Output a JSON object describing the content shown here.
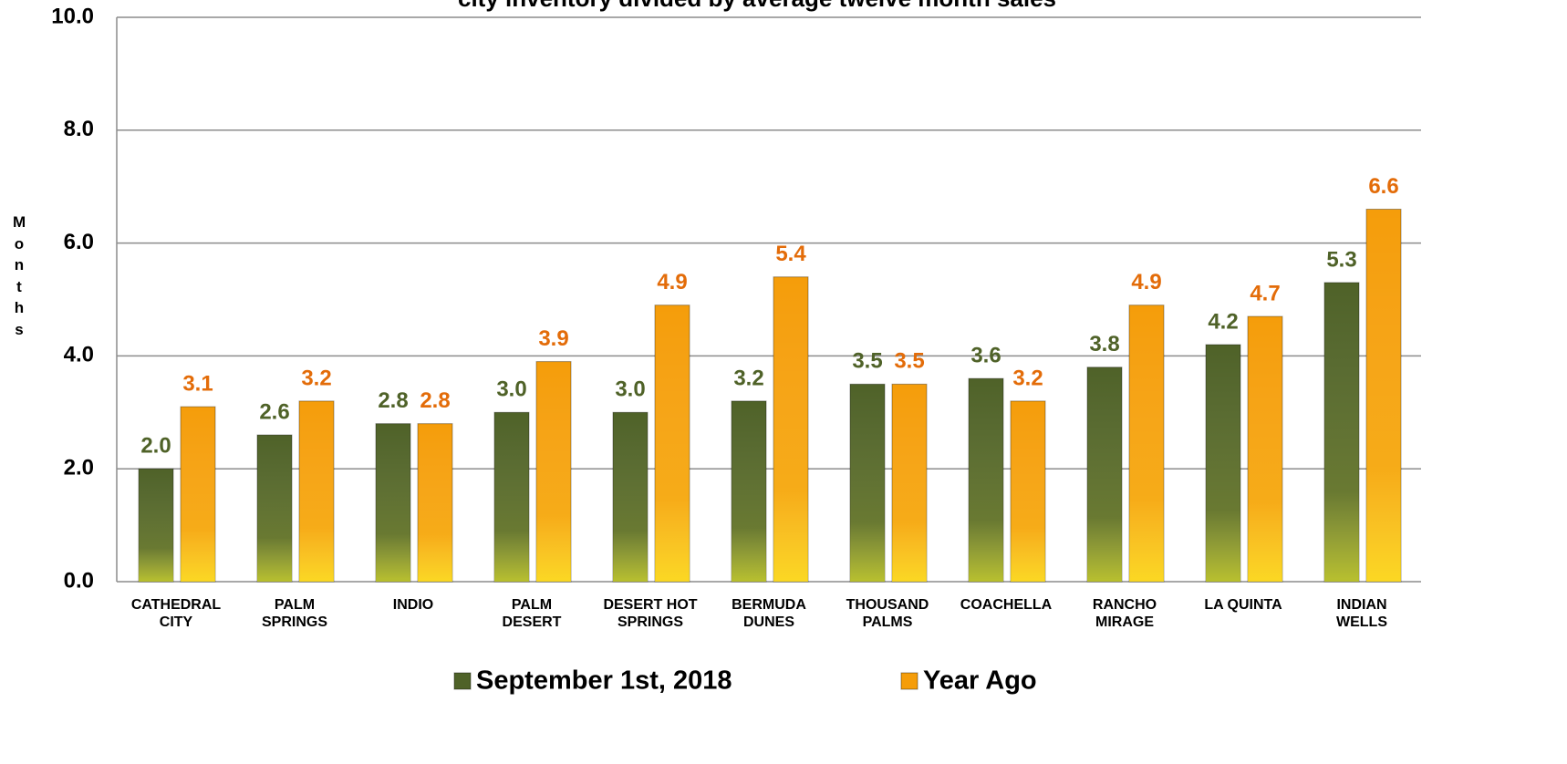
{
  "chart_data": {
    "type": "bar",
    "title": "city inventory divided by average twelve month sales",
    "y_label": "Months",
    "categories": [
      "CATHEDRAL CITY",
      "PALM SPRINGS",
      "INDIO",
      "PALM DESERT",
      "DESERT HOT SPRINGS",
      "BERMUDA DUNES",
      "THOUSAND PALMS",
      "COACHELLA",
      "RANCHO MIRAGE",
      "LA QUINTA",
      "INDIAN WELLS"
    ],
    "series": [
      {
        "name": "September 1st, 2018",
        "color": "#4f6228",
        "label_color": "#4f6228",
        "values": [
          2.0,
          2.6,
          2.8,
          3.0,
          3.0,
          3.2,
          3.5,
          3.6,
          3.8,
          4.2,
          5.3
        ],
        "value_labels": [
          "2.0",
          "2.6",
          "2.8",
          "3.0",
          "3.0",
          "3.2",
          "3.5",
          "3.6",
          "3.8",
          "4.2",
          "5.3"
        ]
      },
      {
        "name": "Year Ago",
        "color": "#f59d0a",
        "label_color": "#e36c09",
        "values": [
          3.1,
          3.2,
          2.8,
          3.9,
          4.9,
          5.4,
          3.5,
          3.2,
          4.9,
          4.7,
          6.6
        ],
        "value_labels": [
          "3.1",
          "3.2",
          "2.8",
          "3.9",
          "4.9",
          "5.4",
          "3.5",
          "3.2",
          "4.9",
          "4.7",
          "6.6"
        ]
      }
    ],
    "ylim": [
      0,
      10
    ],
    "yticks": [
      {
        "value": 0,
        "label": "0.0"
      },
      {
        "value": 2,
        "label": "2.0"
      },
      {
        "value": 4,
        "label": "4.0"
      },
      {
        "value": 6,
        "label": "6.0"
      },
      {
        "value": 8,
        "label": "8.0"
      },
      {
        "value": 10,
        "label": "10.0"
      }
    ],
    "grid": true,
    "legend": "bottom"
  }
}
